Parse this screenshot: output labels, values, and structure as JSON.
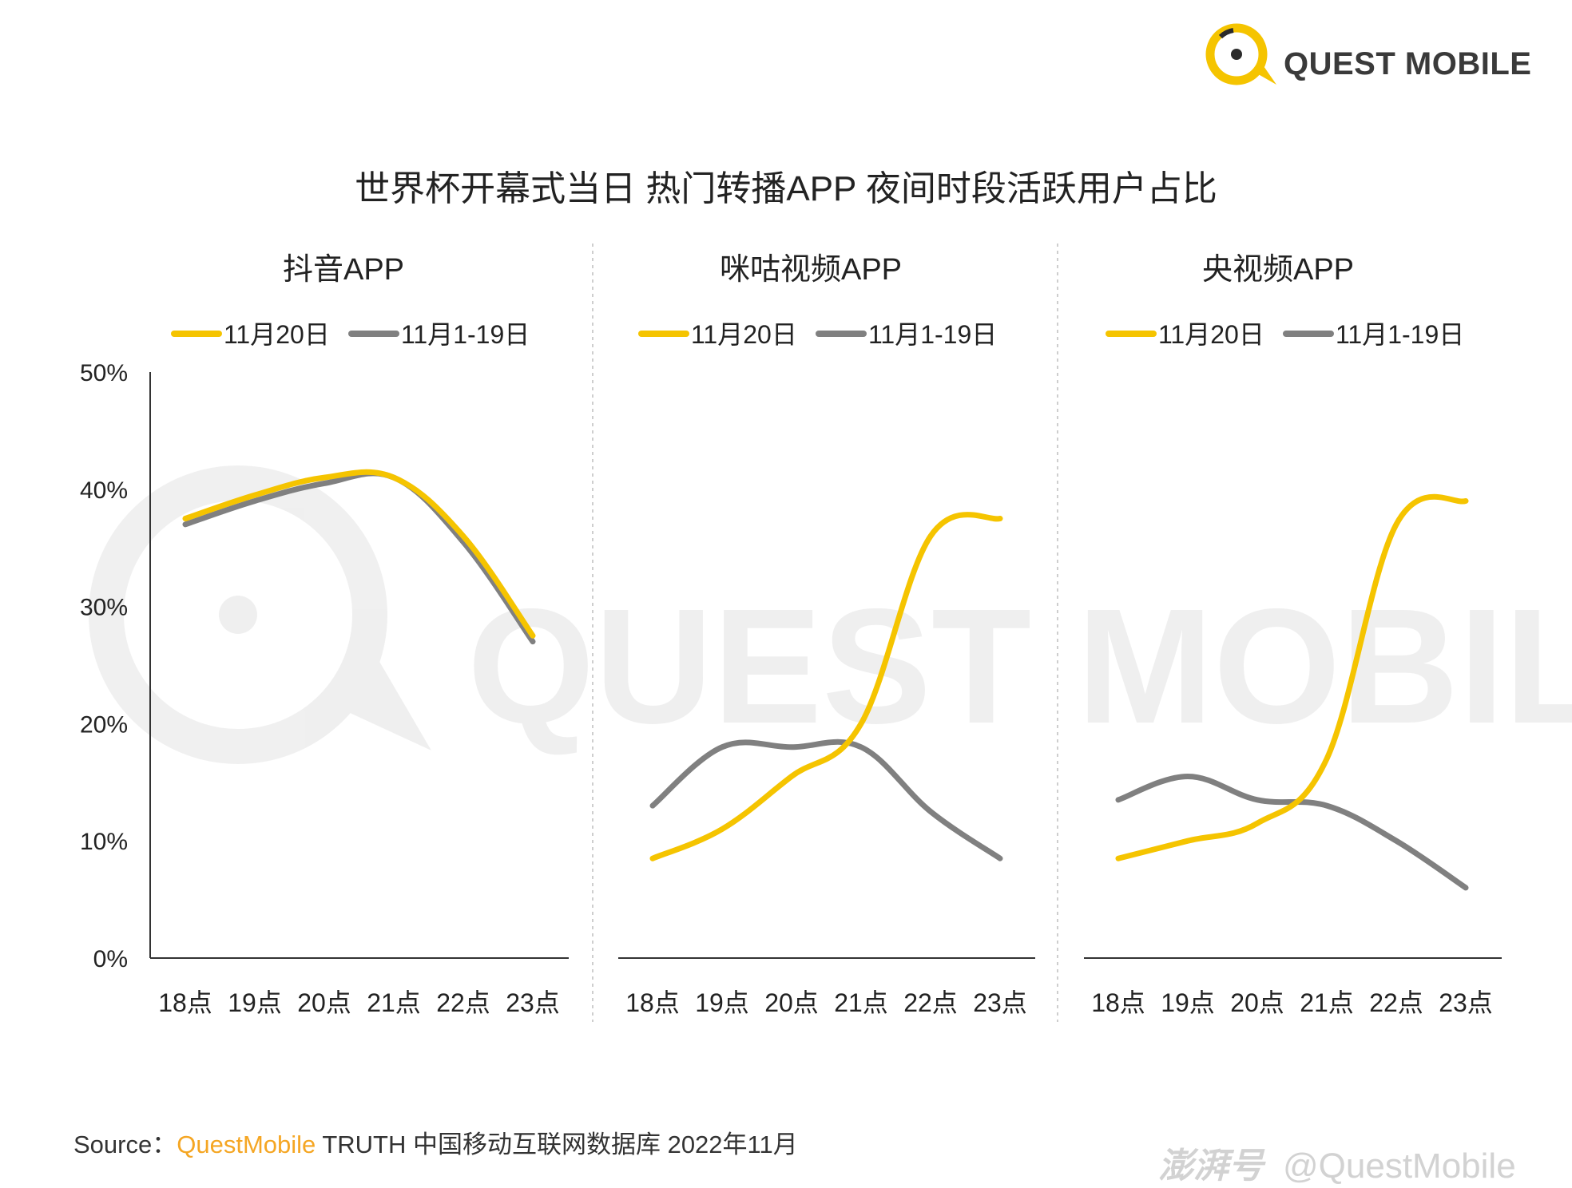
{
  "header": {
    "brand_name": "QUEST MOBILE",
    "title": "世界杯开幕式当日 热门转播APP 夜间时段活跃用户占比"
  },
  "watermark": {
    "text": "QUEST MOBILE"
  },
  "colors": {
    "primary": "#F5C400",
    "secondary": "#808080",
    "divider": "#bdbdbd",
    "axis": "#333333"
  },
  "legend": {
    "series_a": "11月20日",
    "series_b": "11月1-19日"
  },
  "chart_data": [
    {
      "type": "line",
      "title": "抖音APP",
      "categories": [
        "18点",
        "19点",
        "20点",
        "21点",
        "22点",
        "23点"
      ],
      "series": [
        {
          "name": "11月20日",
          "color": "#F5C400",
          "values": [
            37.5,
            39.5,
            41.0,
            41.0,
            36.0,
            27.5
          ]
        },
        {
          "name": "11月1-19日",
          "color": "#808080",
          "values": [
            37.0,
            39.0,
            40.5,
            41.0,
            35.5,
            27.0
          ]
        }
      ],
      "yticks": [
        "0%",
        "10%",
        "20%",
        "30%",
        "40%",
        "50%"
      ],
      "ylim": [
        0,
        50
      ],
      "show_y_axis": true
    },
    {
      "type": "line",
      "title": "咪咕视频APP",
      "categories": [
        "18点",
        "19点",
        "20点",
        "21点",
        "22点",
        "23点"
      ],
      "series": [
        {
          "name": "11月20日",
          "color": "#F5C400",
          "values": [
            8.5,
            11.0,
            15.5,
            20.0,
            36.0,
            37.5
          ]
        },
        {
          "name": "11月1-19日",
          "color": "#808080",
          "values": [
            13.0,
            18.0,
            18.0,
            18.0,
            12.5,
            8.5
          ]
        }
      ],
      "ylim": [
        0,
        50
      ],
      "show_y_axis": false
    },
    {
      "type": "line",
      "title": "央视频APP",
      "categories": [
        "18点",
        "19点",
        "20点",
        "21点",
        "22点",
        "23点"
      ],
      "series": [
        {
          "name": "11月20日",
          "color": "#F5C400",
          "values": [
            8.5,
            10.0,
            11.5,
            17.0,
            37.0,
            39.0
          ]
        },
        {
          "name": "11月1-19日",
          "color": "#808080",
          "values": [
            13.5,
            15.5,
            13.5,
            13.0,
            10.0,
            6.0
          ]
        }
      ],
      "ylim": [
        0,
        50
      ],
      "show_y_axis": false
    }
  ],
  "footer": {
    "source_label": "Source：",
    "source_brand": "QuestMobile",
    "source_rest": " TRUTH 中国移动互联网数据库 2022年11月",
    "credit_mark": "澎湃号",
    "credit_text": "@QuestMobile"
  }
}
